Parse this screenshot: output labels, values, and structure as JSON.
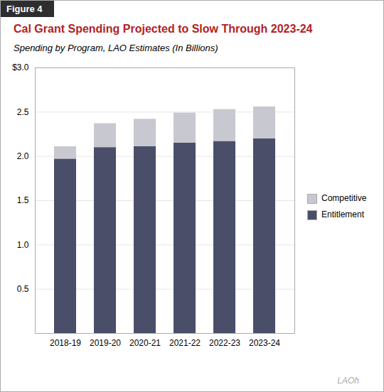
{
  "chart_data": {
    "type": "bar",
    "stacked": true,
    "title": "Cal Grant Spending Projected to Slow Through 2023-24",
    "subtitle": "Spending by Program, LAO Estimates (In Billions)",
    "annotations": [
      "Figure 4",
      "LAOɦ"
    ],
    "categories": [
      "2018-19",
      "2019-20",
      "2020-21",
      "2021-22",
      "2022-23",
      "2023-24"
    ],
    "series": [
      {
        "name": "Entitlement",
        "color": "#4a4e69",
        "values": [
          1.97,
          2.1,
          2.11,
          2.15,
          2.17,
          2.2
        ]
      },
      {
        "name": "Competitive",
        "color": "#c8c8d0",
        "values": [
          0.14,
          0.27,
          0.31,
          0.34,
          0.36,
          0.36
        ]
      }
    ],
    "ylim": [
      0,
      3.0
    ],
    "yticks": [
      0.5,
      {
        "value": 1.0,
        "label": "1.0"
      },
      1.5,
      {
        "value": 2.0,
        "label": "2.0"
      },
      2.5,
      {
        "value": 3.0,
        "label": "$3.0"
      }
    ],
    "grid": true,
    "legend": "right"
  }
}
